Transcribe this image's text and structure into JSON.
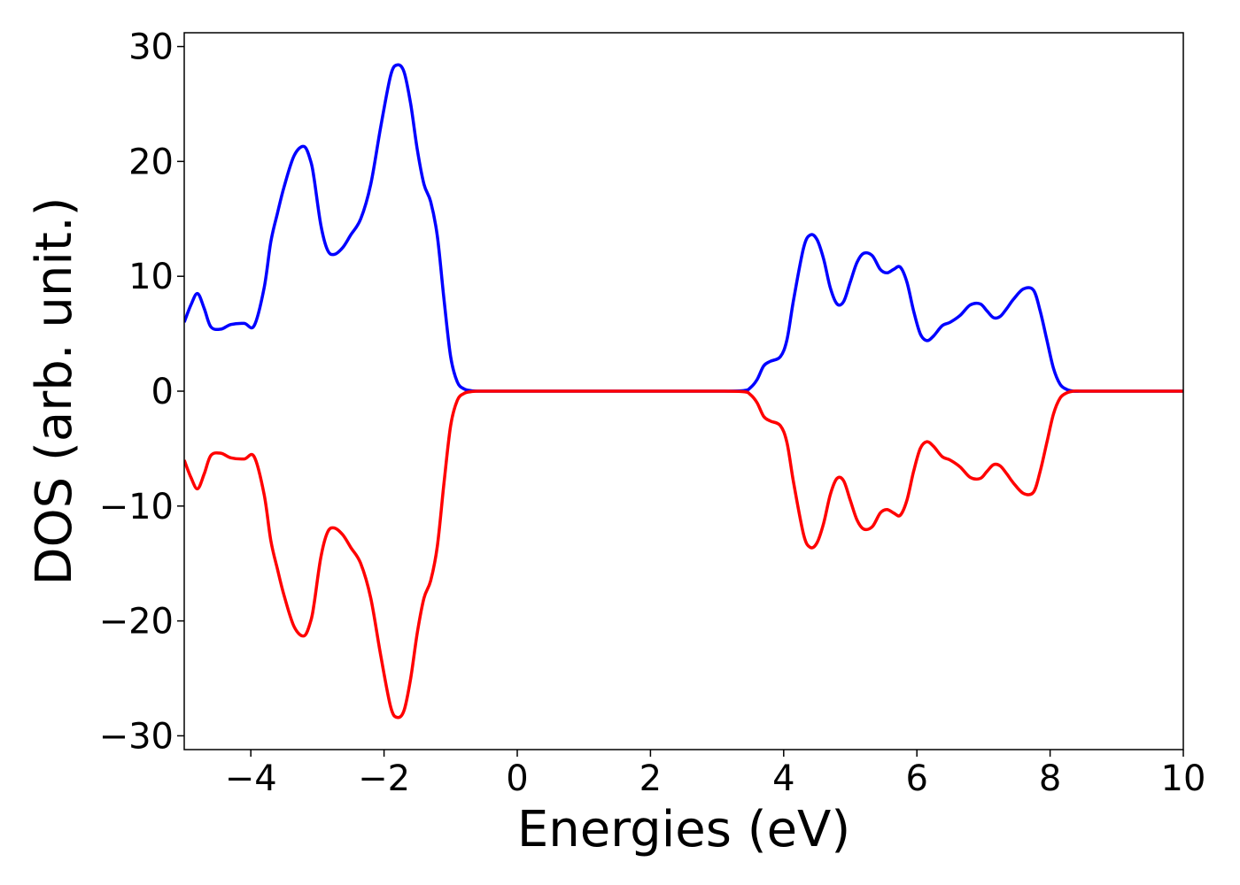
{
  "chart_data": {
    "type": "line",
    "title": "",
    "xlabel": "Energies (eV)",
    "ylabel": "DOS (arb. unit.)",
    "xlim": [
      -5,
      10
    ],
    "ylim": [
      -31.2,
      31.2
    ],
    "x_ticks": [
      -4,
      -2,
      0,
      2,
      4,
      6,
      8,
      10
    ],
    "x_tick_labels": [
      "−4",
      "−2",
      "0",
      "2",
      "4",
      "6",
      "8",
      "10"
    ],
    "y_ticks": [
      -30,
      -20,
      -10,
      0,
      10,
      20,
      30
    ],
    "y_tick_labels": [
      "−30",
      "−20",
      "−10",
      "0",
      "10",
      "20",
      "30"
    ],
    "grid": false,
    "legend": "none",
    "series": [
      {
        "color": "#0000ff",
        "x": [
          -5.0,
          -4.9,
          -4.8,
          -4.7,
          -4.6,
          -4.45,
          -4.3,
          -4.1,
          -3.95,
          -3.8,
          -3.7,
          -3.6,
          -3.5,
          -3.35,
          -3.2,
          -3.1,
          -3.05,
          -2.95,
          -2.85,
          -2.75,
          -2.62,
          -2.5,
          -2.35,
          -2.2,
          -2.05,
          -1.9,
          -1.8,
          -1.7,
          -1.6,
          -1.5,
          -1.4,
          -1.3,
          -1.2,
          -1.1,
          -1.0,
          -0.9,
          -0.8,
          -0.7,
          -0.6,
          -0.5,
          0.0,
          1.0,
          2.0,
          3.0,
          3.4,
          3.5,
          3.6,
          3.7,
          3.8,
          3.95,
          4.05,
          4.15,
          4.3,
          4.4,
          4.5,
          4.6,
          4.7,
          4.8,
          4.9,
          5.0,
          5.1,
          5.2,
          5.33,
          5.45,
          5.55,
          5.65,
          5.75,
          5.85,
          5.95,
          6.05,
          6.15,
          6.25,
          6.38,
          6.5,
          6.65,
          6.8,
          6.95,
          7.05,
          7.15,
          7.25,
          7.35,
          7.45,
          7.6,
          7.75,
          7.85,
          7.95,
          8.05,
          8.15,
          8.25,
          8.35,
          8.45,
          8.55,
          8.7,
          9.0,
          10.0
        ],
        "y": [
          6.0,
          7.5,
          8.5,
          7.2,
          5.6,
          5.4,
          5.8,
          5.9,
          5.7,
          9.0,
          13.0,
          15.5,
          17.8,
          20.5,
          21.3,
          20.0,
          18.5,
          14.5,
          12.3,
          11.9,
          12.5,
          13.6,
          15.0,
          18.0,
          23.0,
          27.5,
          28.4,
          27.8,
          25.0,
          21.0,
          18.0,
          16.5,
          13.5,
          8.0,
          3.0,
          0.8,
          0.2,
          0.05,
          0.0,
          0.0,
          0.0,
          0.0,
          0.0,
          0.0,
          0.05,
          0.3,
          1.0,
          2.2,
          2.6,
          3.0,
          4.5,
          8.0,
          12.5,
          13.6,
          13.2,
          11.5,
          9.0,
          7.6,
          7.8,
          9.5,
          11.2,
          12.0,
          11.8,
          10.6,
          10.3,
          10.6,
          10.8,
          9.5,
          7.0,
          5.0,
          4.4,
          4.8,
          5.7,
          6.0,
          6.6,
          7.5,
          7.6,
          7.0,
          6.4,
          6.5,
          7.2,
          8.0,
          8.9,
          8.8,
          7.0,
          4.5,
          2.0,
          0.6,
          0.15,
          0.0,
          0.0,
          0.0,
          0.0,
          0.0,
          0.0
        ]
      },
      {
        "color": "#ff0000",
        "x": [
          -5.0,
          -4.9,
          -4.8,
          -4.7,
          -4.6,
          -4.45,
          -4.3,
          -4.1,
          -3.95,
          -3.8,
          -3.7,
          -3.6,
          -3.5,
          -3.35,
          -3.2,
          -3.1,
          -3.05,
          -2.95,
          -2.85,
          -2.75,
          -2.62,
          -2.5,
          -2.35,
          -2.2,
          -2.05,
          -1.9,
          -1.8,
          -1.7,
          -1.6,
          -1.5,
          -1.4,
          -1.3,
          -1.2,
          -1.1,
          -1.0,
          -0.9,
          -0.8,
          -0.7,
          -0.6,
          -0.5,
          0.0,
          1.0,
          2.0,
          3.0,
          3.4,
          3.5,
          3.6,
          3.7,
          3.8,
          3.95,
          4.05,
          4.15,
          4.3,
          4.4,
          4.5,
          4.6,
          4.7,
          4.8,
          4.9,
          5.0,
          5.1,
          5.2,
          5.33,
          5.45,
          5.55,
          5.65,
          5.75,
          5.85,
          5.95,
          6.05,
          6.15,
          6.25,
          6.38,
          6.5,
          6.65,
          6.8,
          6.95,
          7.05,
          7.15,
          7.25,
          7.35,
          7.45,
          7.6,
          7.75,
          7.85,
          7.95,
          8.05,
          8.15,
          8.25,
          8.35,
          8.45,
          8.55,
          8.7,
          9.0,
          10.0
        ],
        "y": [
          -6.0,
          -7.5,
          -8.5,
          -7.2,
          -5.6,
          -5.4,
          -5.8,
          -5.9,
          -5.7,
          -9.0,
          -13.0,
          -15.5,
          -17.8,
          -20.5,
          -21.3,
          -20.0,
          -18.5,
          -14.5,
          -12.3,
          -11.9,
          -12.5,
          -13.6,
          -15.0,
          -18.0,
          -23.0,
          -27.5,
          -28.4,
          -27.8,
          -25.0,
          -21.0,
          -18.0,
          -16.5,
          -13.5,
          -8.0,
          -3.0,
          -0.8,
          -0.2,
          -0.05,
          0.0,
          0.0,
          0.0,
          0.0,
          0.0,
          0.0,
          -0.05,
          -0.3,
          -1.0,
          -2.2,
          -2.6,
          -3.0,
          -4.5,
          -8.0,
          -12.5,
          -13.6,
          -13.2,
          -11.5,
          -9.0,
          -7.6,
          -7.8,
          -9.5,
          -11.2,
          -12.0,
          -11.8,
          -10.6,
          -10.3,
          -10.6,
          -10.8,
          -9.5,
          -7.0,
          -5.0,
          -4.4,
          -4.8,
          -5.7,
          -6.0,
          -6.6,
          -7.5,
          -7.6,
          -7.0,
          -6.4,
          -6.5,
          -7.2,
          -8.0,
          -8.9,
          -8.8,
          -7.0,
          -4.5,
          -2.0,
          -0.6,
          -0.15,
          0.0,
          0.0,
          0.0,
          0.0,
          0.0,
          0.0
        ]
      }
    ]
  }
}
